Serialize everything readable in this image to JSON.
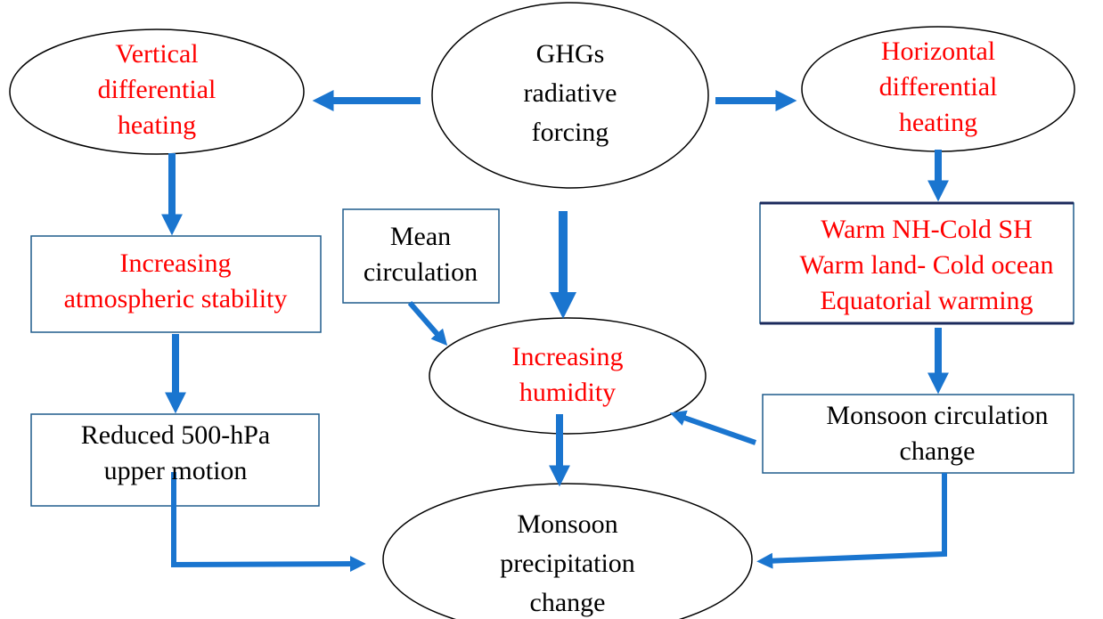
{
  "nodes": [
    {
      "lines": [
        "GHGs",
        "radiative",
        "forcing"
      ]
    },
    {
      "lines": [
        "Vertical",
        "differential",
        "heating"
      ]
    },
    {
      "lines": [
        "Horizontal",
        "differential",
        "heating"
      ]
    },
    {
      "lines": [
        "Increasing",
        "atmospheric stability"
      ]
    },
    {
      "lines": [
        "Mean",
        "circulation"
      ]
    },
    {
      "lines": [
        "Warm NH-Cold SH",
        "Warm land- Cold ocean",
        "Equatorial warming"
      ]
    },
    {
      "lines": [
        "Increasing",
        "humidity"
      ]
    },
    {
      "lines": [
        "Reduced 500-hPa",
        "upper motion"
      ]
    },
    {
      "lines": [
        "Monsoon circulation",
        "change"
      ]
    },
    {
      "lines": [
        "Monsoon",
        "precipitation",
        "change"
      ]
    }
  ]
}
